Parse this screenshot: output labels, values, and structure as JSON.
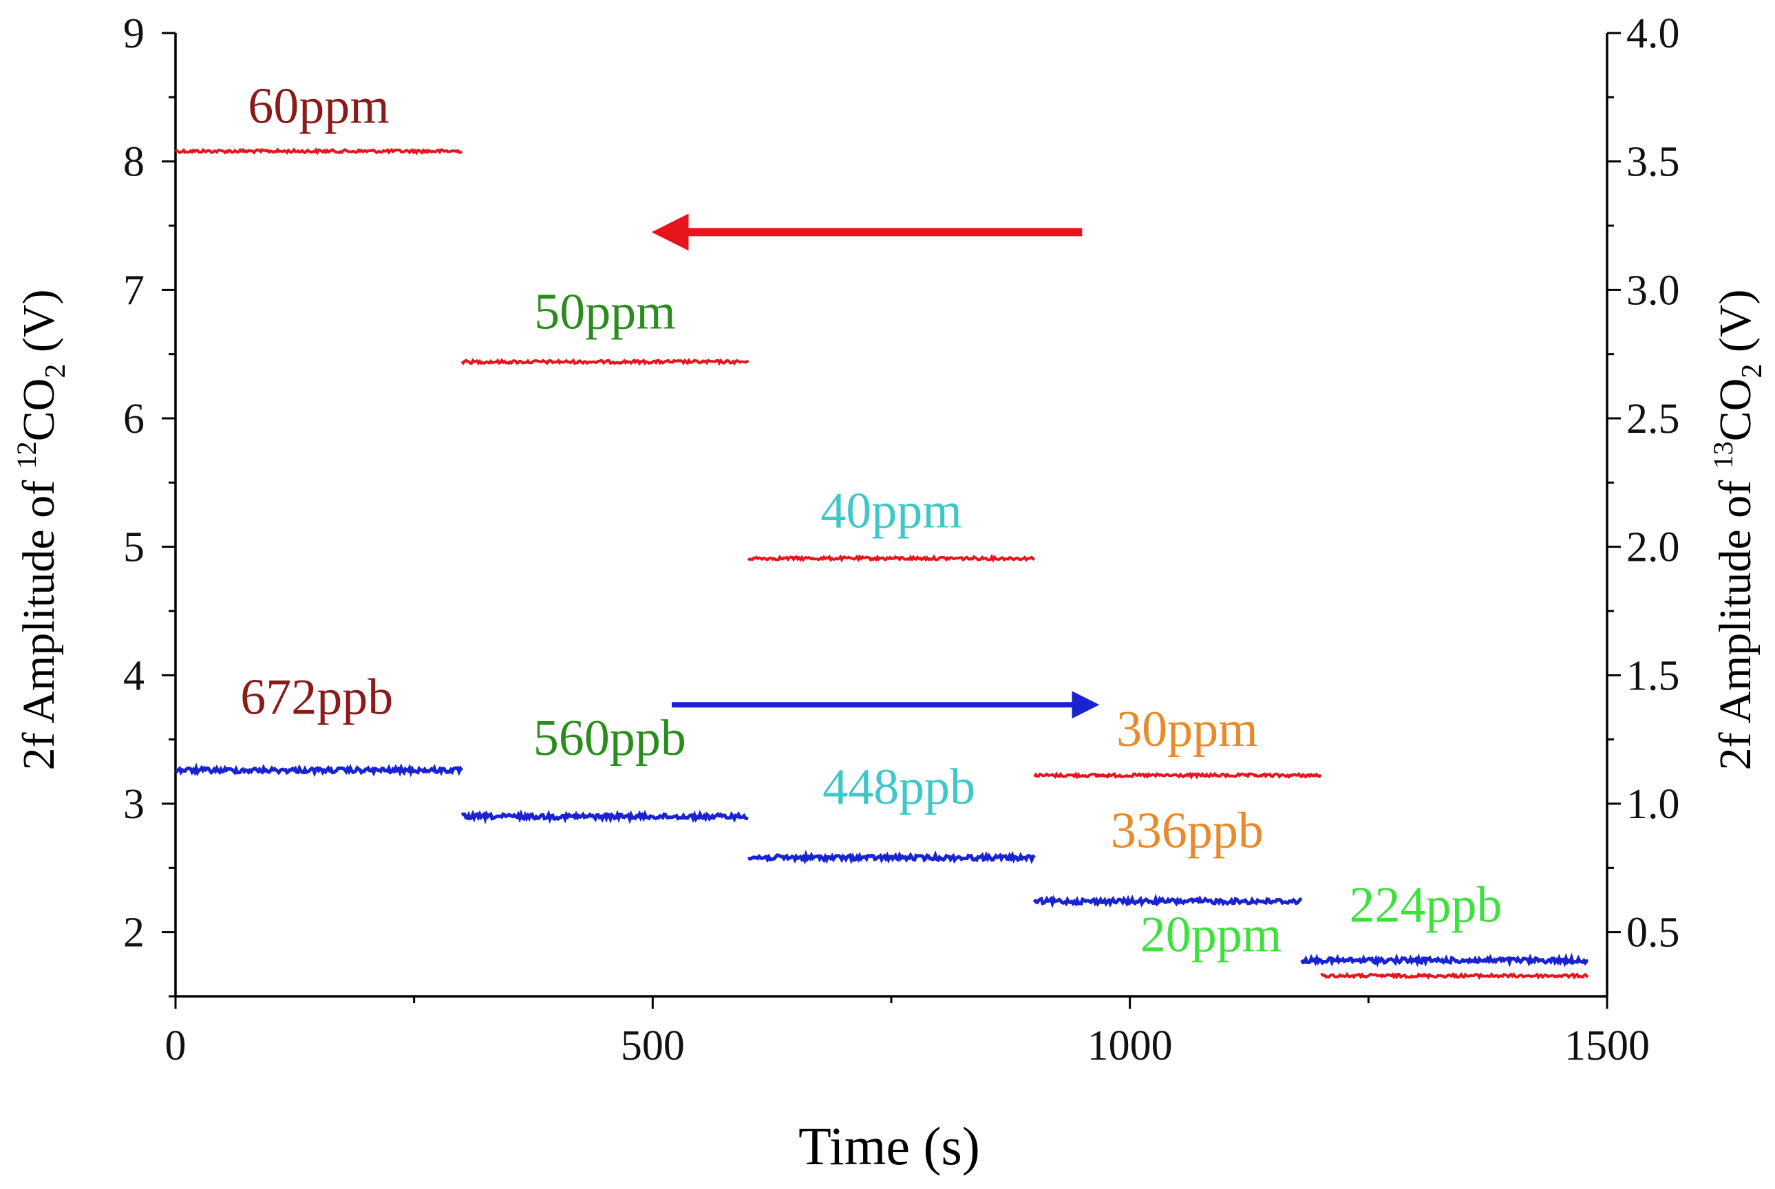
{
  "chart_data": {
    "type": "line",
    "title": "",
    "xlabel": "Time (s)",
    "ylabel_left": {
      "prefix": "2f Amplitude of ",
      "sup": "12",
      "base": "CO",
      "sub": "2",
      "suffix": " (V)"
    },
    "ylabel_right": {
      "prefix": "2f Amplitude of ",
      "sup": "13",
      "base": "CO",
      "sub": "2",
      "suffix": " (V)"
    },
    "xlim": [
      0,
      1500
    ],
    "ylim_left": [
      1.5,
      9
    ],
    "ylim_right": [
      0.25,
      4.0
    ],
    "x_ticks": [
      0,
      500,
      1000,
      1500
    ],
    "x_tick_labels": [
      "0",
      "500",
      "1000",
      "1500"
    ],
    "y_left_ticks": [
      2,
      3,
      4,
      5,
      6,
      7,
      8,
      9
    ],
    "y_left_tick_labels": [
      "2",
      "3",
      "4",
      "5",
      "6",
      "7",
      "8",
      "9"
    ],
    "y_right_ticks": [
      0.5,
      1.0,
      1.5,
      2.0,
      2.5,
      3.0,
      3.5,
      4.0
    ],
    "y_right_tick_labels": [
      "0.5",
      "1.0",
      "1.5",
      "2.0",
      "2.5",
      "3.0",
      "3.5",
      "4.0"
    ],
    "series": [
      {
        "name": "12CO2",
        "axis": "left",
        "color": "#e8141c",
        "segments": [
          {
            "x": [
              0,
              300
            ],
            "y": 8.08,
            "label": "60ppm",
            "label_color": "#8b1a1a",
            "label_x": 150,
            "label_y": 8.3
          },
          {
            "x": [
              300,
              600
            ],
            "y": 6.44,
            "label": "50ppm",
            "label_color": "#2b8c1e",
            "label_x": 450,
            "label_y": 6.7
          },
          {
            "x": [
              600,
              900
            ],
            "y": 4.91,
            "label": "40ppm",
            "label_color": "#3ec7c7",
            "label_x": 750,
            "label_y": 5.15
          },
          {
            "x": [
              900,
              1200
            ],
            "y": 3.22,
            "label": "30ppm",
            "label_color": "#e88a2a",
            "label_x": 1060,
            "label_y": 3.45
          },
          {
            "x": [
              1200,
              1480
            ],
            "y": 1.66,
            "label": "20ppm",
            "label_color": "#3ee03e",
            "label_x": 1085,
            "label_y": 1.85
          }
        ]
      },
      {
        "name": "13CO2",
        "axis": "right",
        "color": "#1a23d1",
        "segments": [
          {
            "x": [
              0,
              300
            ],
            "y": 1.13,
            "label": "672ppb",
            "label_color": "#8b1a1a",
            "label_x": 148,
            "label_y": 1.35
          },
          {
            "x": [
              300,
              600
            ],
            "y": 0.95,
            "label": "560ppb",
            "label_color": "#2b8c1e",
            "label_x": 455,
            "label_y": 1.19
          },
          {
            "x": [
              600,
              900
            ],
            "y": 0.79,
            "label": "448ppb",
            "label_color": "#3ec7c7",
            "label_x": 758,
            "label_y": 1.0
          },
          {
            "x": [
              900,
              1180
            ],
            "y": 0.62,
            "label": "336ppb",
            "label_color": "#e88a2a",
            "label_x": 1060,
            "label_y": 0.83
          },
          {
            "x": [
              1180,
              1480
            ],
            "y": 0.39,
            "label": "224ppb",
            "label_color": "#3ee03e",
            "label_x": 1310,
            "label_y": 0.54
          }
        ]
      }
    ],
    "annotations": [
      {
        "type": "arrow",
        "direction": "left",
        "color": "#e8141c",
        "axis": "left",
        "from_x": 950,
        "to_x": 530,
        "y": 7.45
      },
      {
        "type": "arrow",
        "direction": "right",
        "color": "#1a23d1",
        "axis": "left",
        "from_x": 520,
        "to_x": 945,
        "y": 3.77
      }
    ]
  }
}
